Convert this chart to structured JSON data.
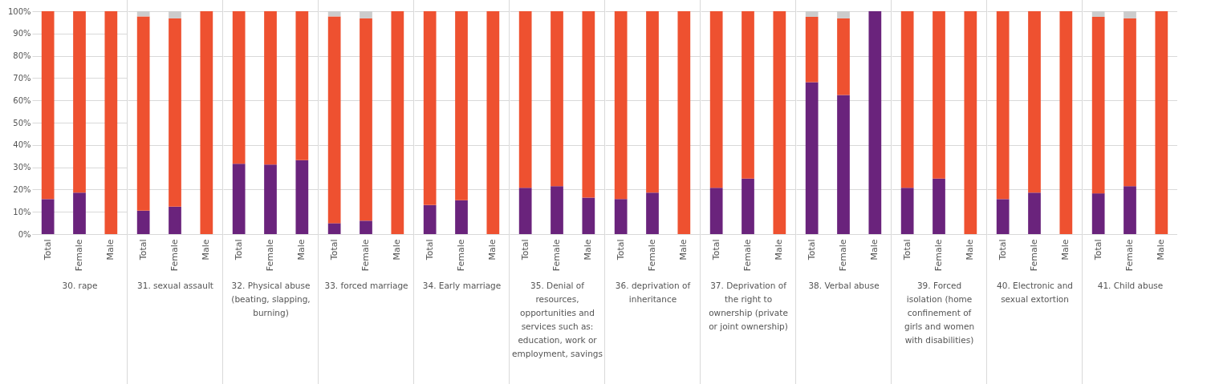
{
  "chart_data": [
    {
      "type": "bar",
      "xlabel": "30. rape",
      "categories": [
        "Total",
        "Female",
        "Male"
      ],
      "stacked": true,
      "grid": "y",
      "ylim": [
        0,
        100
      ],
      "yticks": [
        {
          "value": 0,
          "label": "0%"
        },
        {
          "value": 10,
          "label": "10%"
        },
        {
          "value": 20,
          "label": "20%"
        },
        {
          "value": 30,
          "label": "30%"
        },
        {
          "value": 40,
          "label": "40%"
        },
        {
          "value": 50,
          "label": "50%"
        },
        {
          "value": 60,
          "label": "60%"
        },
        {
          "value": 70,
          "label": "70%"
        },
        {
          "value": 80,
          "label": "80%"
        },
        {
          "value": 90,
          "label": "90%"
        },
        {
          "value": 100,
          "label": "100%"
        }
      ],
      "series": [
        {
          "color": "#6a237c",
          "values": [
            15.7,
            18.6,
            0
          ]
        },
        {
          "color": "#ee5130",
          "values": [
            84.3,
            81.4,
            100
          ]
        },
        {
          "color": "#cccccc",
          "values": [
            0,
            0,
            0
          ]
        }
      ]
    },
    {
      "type": "bar",
      "xlabel": "31. sexual assault",
      "categories": [
        "Total",
        "Female",
        "Male"
      ],
      "stacked": true,
      "grid": "y",
      "tick_labels": "x",
      "ylim": [
        0,
        100
      ],
      "series": [
        {
          "color": "#6a237c",
          "values": [
            10.5,
            12.3,
            0
          ]
        },
        {
          "color": "#ee5130",
          "values": [
            87.2,
            84.5,
            100
          ]
        },
        {
          "color": "#cccccc",
          "values": [
            2.3,
            3.2,
            0
          ]
        }
      ]
    },
    {
      "type": "bar",
      "xlabel": "32. Physical abuse (beating, slapping, burning)",
      "categories": [
        "Total",
        "Female",
        "Male"
      ],
      "stacked": true,
      "grid": "y",
      "tick_labels": "x",
      "ylim": [
        0,
        100
      ],
      "series": [
        {
          "color": "#6a237c",
          "values": [
            31.6,
            31.2,
            33.2
          ]
        },
        {
          "color": "#ee5130",
          "values": [
            68.4,
            68.8,
            66.8
          ]
        },
        {
          "color": "#cccccc",
          "values": [
            0,
            0,
            0
          ]
        }
      ]
    },
    {
      "type": "bar",
      "xlabel": "33. forced marriage",
      "categories": [
        "Total",
        "Female",
        "Male"
      ],
      "stacked": true,
      "grid": "y",
      "tick_labels": "x",
      "ylim": [
        0,
        100
      ],
      "series": [
        {
          "color": "#6a237c",
          "values": [
            4.9,
            6,
            0
          ]
        },
        {
          "color": "#ee5130",
          "values": [
            92.8,
            90.8,
            100
          ]
        },
        {
          "color": "#cccccc",
          "values": [
            2.3,
            3.2,
            0
          ]
        }
      ]
    },
    {
      "type": "bar",
      "xlabel": "34. Early marriage",
      "categories": [
        "Total",
        "Female",
        "Male"
      ],
      "stacked": true,
      "grid": "y",
      "tick_labels": "x",
      "ylim": [
        0,
        100
      ],
      "series": [
        {
          "color": "#6a237c",
          "values": [
            13,
            15.2,
            0
          ]
        },
        {
          "color": "#ee5130",
          "values": [
            87,
            84.8,
            100
          ]
        },
        {
          "color": "#cccccc",
          "values": [
            0,
            0,
            0
          ]
        }
      ]
    },
    {
      "type": "bar",
      "xlabel": "35. Denial of resources, opportunities and services such as: education, work or employment, savings",
      "categories": [
        "Total",
        "Female",
        "Male"
      ],
      "stacked": true,
      "grid": "y",
      "tick_labels": "x",
      "ylim": [
        0,
        100
      ],
      "series": [
        {
          "color": "#6a237c",
          "values": [
            20.8,
            21.5,
            16.4
          ]
        },
        {
          "color": "#ee5130",
          "values": [
            79.2,
            78.5,
            83.6
          ]
        },
        {
          "color": "#cccccc",
          "values": [
            0,
            0,
            0
          ]
        }
      ]
    },
    {
      "type": "bar",
      "xlabel": "36. deprivation of inheritance",
      "categories": [
        "Total",
        "Female",
        "Male"
      ],
      "stacked": true,
      "grid": "y",
      "tick_labels": "x",
      "ylim": [
        0,
        100
      ],
      "series": [
        {
          "color": "#6a237c",
          "values": [
            15.7,
            18.6,
            0
          ]
        },
        {
          "color": "#ee5130",
          "values": [
            84.3,
            81.4,
            100
          ]
        },
        {
          "color": "#cccccc",
          "values": [
            0,
            0,
            0
          ]
        }
      ]
    },
    {
      "type": "bar",
      "xlabel": "37. Deprivation of the right to ownership (private or joint ownership)",
      "categories": [
        "Total",
        "Female",
        "Male"
      ],
      "stacked": true,
      "grid": "y",
      "tick_labels": "x",
      "ylim": [
        0,
        100
      ],
      "series": [
        {
          "color": "#6a237c",
          "values": [
            20.8,
            24.9,
            0
          ]
        },
        {
          "color": "#ee5130",
          "values": [
            79.2,
            75.1,
            100
          ]
        },
        {
          "color": "#cccccc",
          "values": [
            0,
            0,
            0
          ]
        }
      ]
    },
    {
      "type": "bar",
      "xlabel": "38. Verbal abuse",
      "categories": [
        "Total",
        "Female",
        "Male"
      ],
      "stacked": true,
      "grid": "y",
      "tick_labels": "x",
      "ylim": [
        0,
        100
      ],
      "series": [
        {
          "color": "#6a237c",
          "values": [
            68.2,
            62.4,
            100
          ]
        },
        {
          "color": "#ee5130",
          "values": [
            29.3,
            34.4,
            0
          ]
        },
        {
          "color": "#cccccc",
          "values": [
            2.5,
            3.2,
            0
          ]
        }
      ]
    },
    {
      "type": "bar",
      "xlabel": "39. Forced isolation (home confinement of girls and women with disabilities)",
      "categories": [
        "Total",
        "Female",
        "Male"
      ],
      "stacked": true,
      "grid": "y",
      "tick_labels": "x",
      "ylim": [
        0,
        100
      ],
      "series": [
        {
          "color": "#6a237c",
          "values": [
            20.8,
            24.9,
            0
          ]
        },
        {
          "color": "#ee5130",
          "values": [
            79.2,
            75.1,
            100
          ]
        },
        {
          "color": "#cccccc",
          "values": [
            0,
            0,
            0
          ]
        }
      ]
    },
    {
      "type": "bar",
      "xlabel": "40. Electronic and sexual extortion",
      "categories": [
        "Total",
        "Female",
        "Male"
      ],
      "stacked": true,
      "grid": "y",
      "tick_labels": "x",
      "ylim": [
        0,
        100
      ],
      "series": [
        {
          "color": "#6a237c",
          "values": [
            15.7,
            18.6,
            0
          ]
        },
        {
          "color": "#ee5130",
          "values": [
            84.3,
            81.4,
            100
          ]
        },
        {
          "color": "#cccccc",
          "values": [
            0,
            0,
            0
          ]
        }
      ]
    },
    {
      "type": "bar",
      "xlabel": "41. Child abuse",
      "categories": [
        "Total",
        "Female",
        "Male"
      ],
      "stacked": true,
      "grid": "y",
      "tick_labels": "x",
      "ylim": [
        0,
        100
      ],
      "series": [
        {
          "color": "#6a237c",
          "values": [
            18.3,
            21.5,
            0
          ]
        },
        {
          "color": "#ee5130",
          "values": [
            79.2,
            75.3,
            100
          ]
        },
        {
          "color": "#cccccc",
          "values": [
            2.5,
            3.2,
            0
          ]
        }
      ]
    }
  ]
}
